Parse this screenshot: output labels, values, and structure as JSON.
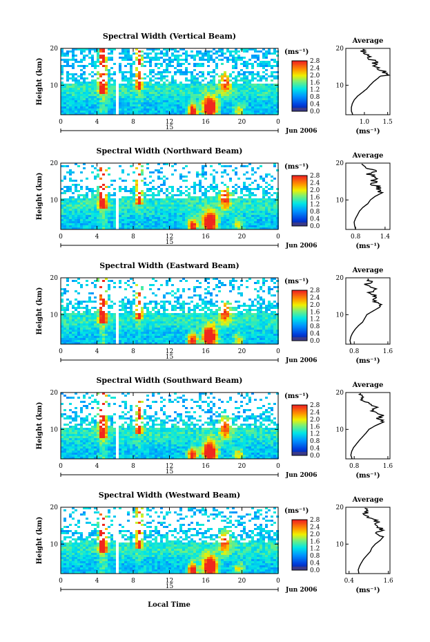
{
  "figure": {
    "common": {
      "xlabel": "Local Time",
      "ylabel": "Height (km)",
      "date_label": "Jun 2006",
      "day_label": "15",
      "colorbar_unit": "(ms⁻¹)",
      "profile_title": "Average",
      "profile_xlabel": "(ms⁻¹)"
    }
  },
  "chart_data": [
    {
      "type": "heatmap",
      "title": "Spectral Width (Vertical Beam)",
      "x_ticks": [
        "0",
        "4",
        "8",
        "12",
        "16",
        "20",
        "0"
      ],
      "xlim": [
        0,
        24
      ],
      "y_ticks": [
        "10",
        "20"
      ],
      "ylim": [
        2,
        20
      ],
      "colorbar_ticks": [
        "0.0",
        "0.4",
        "0.8",
        "1.2",
        "1.6",
        "2.0",
        "2.4",
        "2.8"
      ],
      "colorbar_range": [
        0,
        2.8
      ],
      "profile": {
        "x_ticks": [
          "1.0",
          "1.5"
        ],
        "xlim": [
          0.6,
          1.55
        ],
        "y_ticks": [
          "10",
          "20"
        ],
        "values_by_height": [
          {
            "h": 2,
            "v": 0.75
          },
          {
            "h": 3,
            "v": 0.72
          },
          {
            "h": 4,
            "v": 0.72
          },
          {
            "h": 5,
            "v": 0.74
          },
          {
            "h": 6,
            "v": 0.78
          },
          {
            "h": 7,
            "v": 0.85
          },
          {
            "h": 8,
            "v": 0.95
          },
          {
            "h": 9,
            "v": 1.05
          },
          {
            "h": 10,
            "v": 1.12
          },
          {
            "h": 11,
            "v": 1.2
          },
          {
            "h": 12,
            "v": 1.3
          },
          {
            "h": 13,
            "v": 1.5
          },
          {
            "h": 14,
            "v": 1.35
          },
          {
            "h": 15,
            "v": 1.2
          },
          {
            "h": 16,
            "v": 1.25
          },
          {
            "h": 17,
            "v": 1.15
          },
          {
            "h": 18,
            "v": 1.05
          },
          {
            "h": 19,
            "v": 1.0
          },
          {
            "h": 20,
            "v": 0.95
          }
        ]
      }
    },
    {
      "type": "heatmap",
      "title": "Spectral Width (Northward Beam)",
      "x_ticks": [
        "0",
        "4",
        "8",
        "12",
        "16",
        "20",
        "0"
      ],
      "xlim": [
        0,
        24
      ],
      "y_ticks": [
        "10",
        "20"
      ],
      "ylim": [
        2,
        20
      ],
      "colorbar_ticks": [
        "0.0",
        "0.4",
        "0.8",
        "1.2",
        "1.6",
        "2.0",
        "2.4",
        "2.8"
      ],
      "colorbar_range": [
        0,
        2.8
      ],
      "profile": {
        "x_ticks": [
          "0.8",
          "1.4"
        ],
        "xlim": [
          0.6,
          1.5
        ],
        "y_ticks": [
          "10",
          "20"
        ],
        "values_by_height": [
          {
            "h": 2,
            "v": 0.8
          },
          {
            "h": 3,
            "v": 0.78
          },
          {
            "h": 4,
            "v": 0.77
          },
          {
            "h": 5,
            "v": 0.8
          },
          {
            "h": 6,
            "v": 0.84
          },
          {
            "h": 7,
            "v": 0.88
          },
          {
            "h": 8,
            "v": 0.95
          },
          {
            "h": 9,
            "v": 1.05
          },
          {
            "h": 10,
            "v": 1.1
          },
          {
            "h": 11,
            "v": 1.2
          },
          {
            "h": 12,
            "v": 1.35
          },
          {
            "h": 13,
            "v": 1.3
          },
          {
            "h": 14,
            "v": 1.2
          },
          {
            "h": 15,
            "v": 1.15
          },
          {
            "h": 16,
            "v": 1.25
          },
          {
            "h": 17,
            "v": 1.1
          },
          {
            "h": 18,
            "v": 1.2
          },
          {
            "h": 19,
            "v": 1.05
          },
          {
            "h": 20,
            "v": 0.95
          }
        ]
      }
    },
    {
      "type": "heatmap",
      "title": "Spectral Width (Eastward Beam)",
      "x_ticks": [
        "0",
        "4",
        "8",
        "12",
        "16",
        "20",
        "0"
      ],
      "xlim": [
        0,
        24
      ],
      "y_ticks": [
        "10",
        "20"
      ],
      "ylim": [
        2,
        20
      ],
      "colorbar_ticks": [
        "0.0",
        "0.4",
        "0.8",
        "1.2",
        "1.6",
        "2.0",
        "2.4",
        "2.8"
      ],
      "colorbar_range": [
        0,
        2.8
      ],
      "profile": {
        "x_ticks": [
          "0.8",
          "1.6"
        ],
        "xlim": [
          0.6,
          1.65
        ],
        "y_ticks": [
          "10",
          "20"
        ],
        "values_by_height": [
          {
            "h": 2,
            "v": 0.72
          },
          {
            "h": 3,
            "v": 0.7
          },
          {
            "h": 4,
            "v": 0.72
          },
          {
            "h": 5,
            "v": 0.76
          },
          {
            "h": 6,
            "v": 0.82
          },
          {
            "h": 7,
            "v": 0.9
          },
          {
            "h": 8,
            "v": 1.0
          },
          {
            "h": 9,
            "v": 1.05
          },
          {
            "h": 10,
            "v": 1.1
          },
          {
            "h": 11,
            "v": 1.25
          },
          {
            "h": 12,
            "v": 1.4
          },
          {
            "h": 13,
            "v": 1.35
          },
          {
            "h": 14,
            "v": 1.2
          },
          {
            "h": 15,
            "v": 1.3
          },
          {
            "h": 16,
            "v": 1.15
          },
          {
            "h": 17,
            "v": 1.25
          },
          {
            "h": 18,
            "v": 1.1
          },
          {
            "h": 19,
            "v": 1.2
          },
          {
            "h": 20,
            "v": 1.0
          }
        ]
      }
    },
    {
      "type": "heatmap",
      "title": "Spectral Width (Southward Beam)",
      "x_ticks": [
        "0",
        "4",
        "8",
        "12",
        "16",
        "20",
        "0"
      ],
      "xlim": [
        0,
        24
      ],
      "y_ticks": [
        "10",
        "20"
      ],
      "ylim": [
        2,
        20
      ],
      "colorbar_ticks": [
        "0.0",
        "0.4",
        "0.8",
        "1.2",
        "1.6",
        "2.0",
        "2.4",
        "2.8"
      ],
      "colorbar_range": [
        0,
        2.8
      ],
      "profile": {
        "x_ticks": [
          "0.8",
          "1.6"
        ],
        "xlim": [
          0.6,
          1.65
        ],
        "y_ticks": [
          "10",
          "20"
        ],
        "values_by_height": [
          {
            "h": 2,
            "v": 0.75
          },
          {
            "h": 3,
            "v": 0.72
          },
          {
            "h": 4,
            "v": 0.74
          },
          {
            "h": 5,
            "v": 0.78
          },
          {
            "h": 6,
            "v": 0.85
          },
          {
            "h": 7,
            "v": 0.92
          },
          {
            "h": 8,
            "v": 1.0
          },
          {
            "h": 9,
            "v": 1.08
          },
          {
            "h": 10,
            "v": 1.15
          },
          {
            "h": 11,
            "v": 1.3
          },
          {
            "h": 12,
            "v": 1.5
          },
          {
            "h": 13,
            "v": 1.35
          },
          {
            "h": 14,
            "v": 1.45
          },
          {
            "h": 15,
            "v": 1.2
          },
          {
            "h": 16,
            "v": 1.35
          },
          {
            "h": 17,
            "v": 1.1
          },
          {
            "h": 18,
            "v": 0.95
          },
          {
            "h": 19,
            "v": 1.05
          },
          {
            "h": 20,
            "v": 0.9
          }
        ]
      }
    },
    {
      "type": "heatmap",
      "title": "Spectral Width (Westward Beam)",
      "x_ticks": [
        "0",
        "4",
        "8",
        "12",
        "16",
        "20",
        "0"
      ],
      "xlim": [
        0,
        24
      ],
      "y_ticks": [
        "10",
        "20"
      ],
      "ylim": [
        2,
        20
      ],
      "colorbar_ticks": [
        "0.0",
        "0.4",
        "0.8",
        "1.2",
        "1.6",
        "2.0",
        "2.4",
        "2.8"
      ],
      "colorbar_range": [
        0,
        2.8
      ],
      "profile": {
        "x_ticks": [
          "0.4",
          "1.6"
        ],
        "xlim": [
          0.3,
          1.65
        ],
        "y_ticks": [
          "10",
          "20"
        ],
        "values_by_height": [
          {
            "h": 2,
            "v": 0.7
          },
          {
            "h": 3,
            "v": 0.68
          },
          {
            "h": 4,
            "v": 0.72
          },
          {
            "h": 5,
            "v": 0.78
          },
          {
            "h": 6,
            "v": 0.85
          },
          {
            "h": 7,
            "v": 0.95
          },
          {
            "h": 8,
            "v": 1.05
          },
          {
            "h": 9,
            "v": 1.1
          },
          {
            "h": 10,
            "v": 1.2
          },
          {
            "h": 11,
            "v": 1.35
          },
          {
            "h": 12,
            "v": 1.45
          },
          {
            "h": 13,
            "v": 1.3
          },
          {
            "h": 14,
            "v": 1.4
          },
          {
            "h": 15,
            "v": 1.2
          },
          {
            "h": 16,
            "v": 1.3
          },
          {
            "h": 17,
            "v": 1.05
          },
          {
            "h": 18,
            "v": 0.85
          },
          {
            "h": 19,
            "v": 0.95
          },
          {
            "h": 20,
            "v": 0.9
          }
        ]
      }
    }
  ]
}
